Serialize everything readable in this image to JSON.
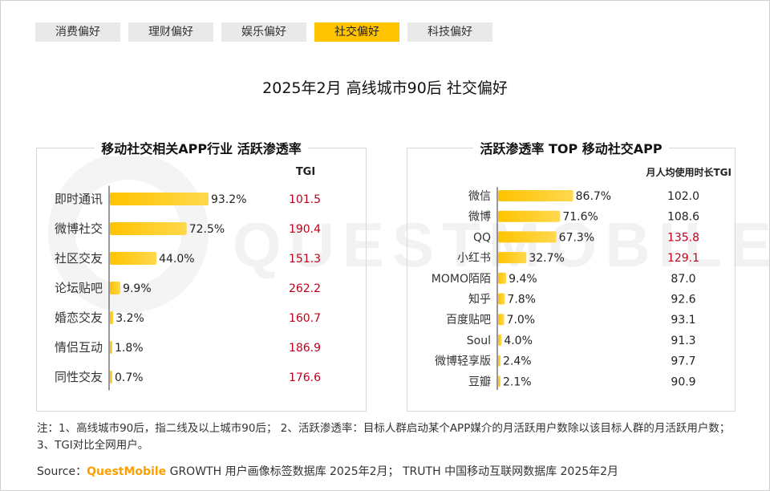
{
  "tabs": [
    {
      "label": "消费偏好",
      "active": false
    },
    {
      "label": "理财偏好",
      "active": false
    },
    {
      "label": "娱乐偏好",
      "active": false
    },
    {
      "label": "社交偏好",
      "active": true
    },
    {
      "label": "科技偏好",
      "active": false
    }
  ],
  "main_title": "2025年2月 高线城市90后 社交偏好",
  "watermark": "QUESTMOBILE",
  "chart_data": [
    {
      "type": "bar",
      "title": "移动社交相关APP行业 活跃渗透率",
      "tgi_header": "TGI",
      "categories": [
        "即时通讯",
        "微博社交",
        "社区交友",
        "论坛贴吧",
        "婚恋交友",
        "情侣互动",
        "同性交友"
      ],
      "values": [
        93.2,
        72.5,
        44.0,
        9.9,
        3.2,
        1.8,
        0.7
      ],
      "value_labels": [
        "93.2%",
        "72.5%",
        "44.0%",
        "9.9%",
        "3.2%",
        "1.8%",
        "0.7%"
      ],
      "tgi": [
        "101.5",
        "190.4",
        "151.3",
        "262.2",
        "160.7",
        "186.9",
        "176.6"
      ],
      "tgi_highlight": [
        true,
        true,
        true,
        true,
        true,
        true,
        true
      ],
      "xlim": [
        0,
        100
      ],
      "bar_color": "#ffc300",
      "highlight_color": "#c0001a"
    },
    {
      "type": "bar",
      "title": "活跃渗透率 TOP 移动社交APP",
      "tgi_header": "月人均使用时长TGI",
      "categories": [
        "微信",
        "微博",
        "QQ",
        "小红书",
        "MOMO陌陌",
        "知乎",
        "百度贴吧",
        "Soul",
        "微博轻享版",
        "豆瓣"
      ],
      "values": [
        86.7,
        71.6,
        67.3,
        32.7,
        9.4,
        7.8,
        7.0,
        4.0,
        2.4,
        2.1
      ],
      "value_labels": [
        "86.7%",
        "71.6%",
        "67.3%",
        "32.7%",
        "9.4%",
        "7.8%",
        "7.0%",
        "4.0%",
        "2.4%",
        "2.1%"
      ],
      "tgi": [
        "102.0",
        "108.6",
        "135.8",
        "129.1",
        "87.0",
        "92.6",
        "93.1",
        "91.3",
        "97.7",
        "90.9"
      ],
      "tgi_highlight": [
        false,
        false,
        true,
        true,
        false,
        false,
        false,
        false,
        false,
        false
      ],
      "xlim": [
        0,
        100
      ],
      "bar_color": "#ffc300",
      "highlight_color": "#c0001a"
    }
  ],
  "note": "注：1、高线城市90后，指二线及以上城市90后； 2、活跃渗透率：目标人群启动某个APP媒介的月活跃用户数除以该目标人群的月活跃用户数；3、TGI对比全网用户。",
  "source": {
    "prefix": "Source：",
    "brand": "QuestMobile",
    "rest": " GROWTH 用户画像标签数据库 2025年2月； TRUTH 中国移动互联网数据库 2025年2月"
  }
}
